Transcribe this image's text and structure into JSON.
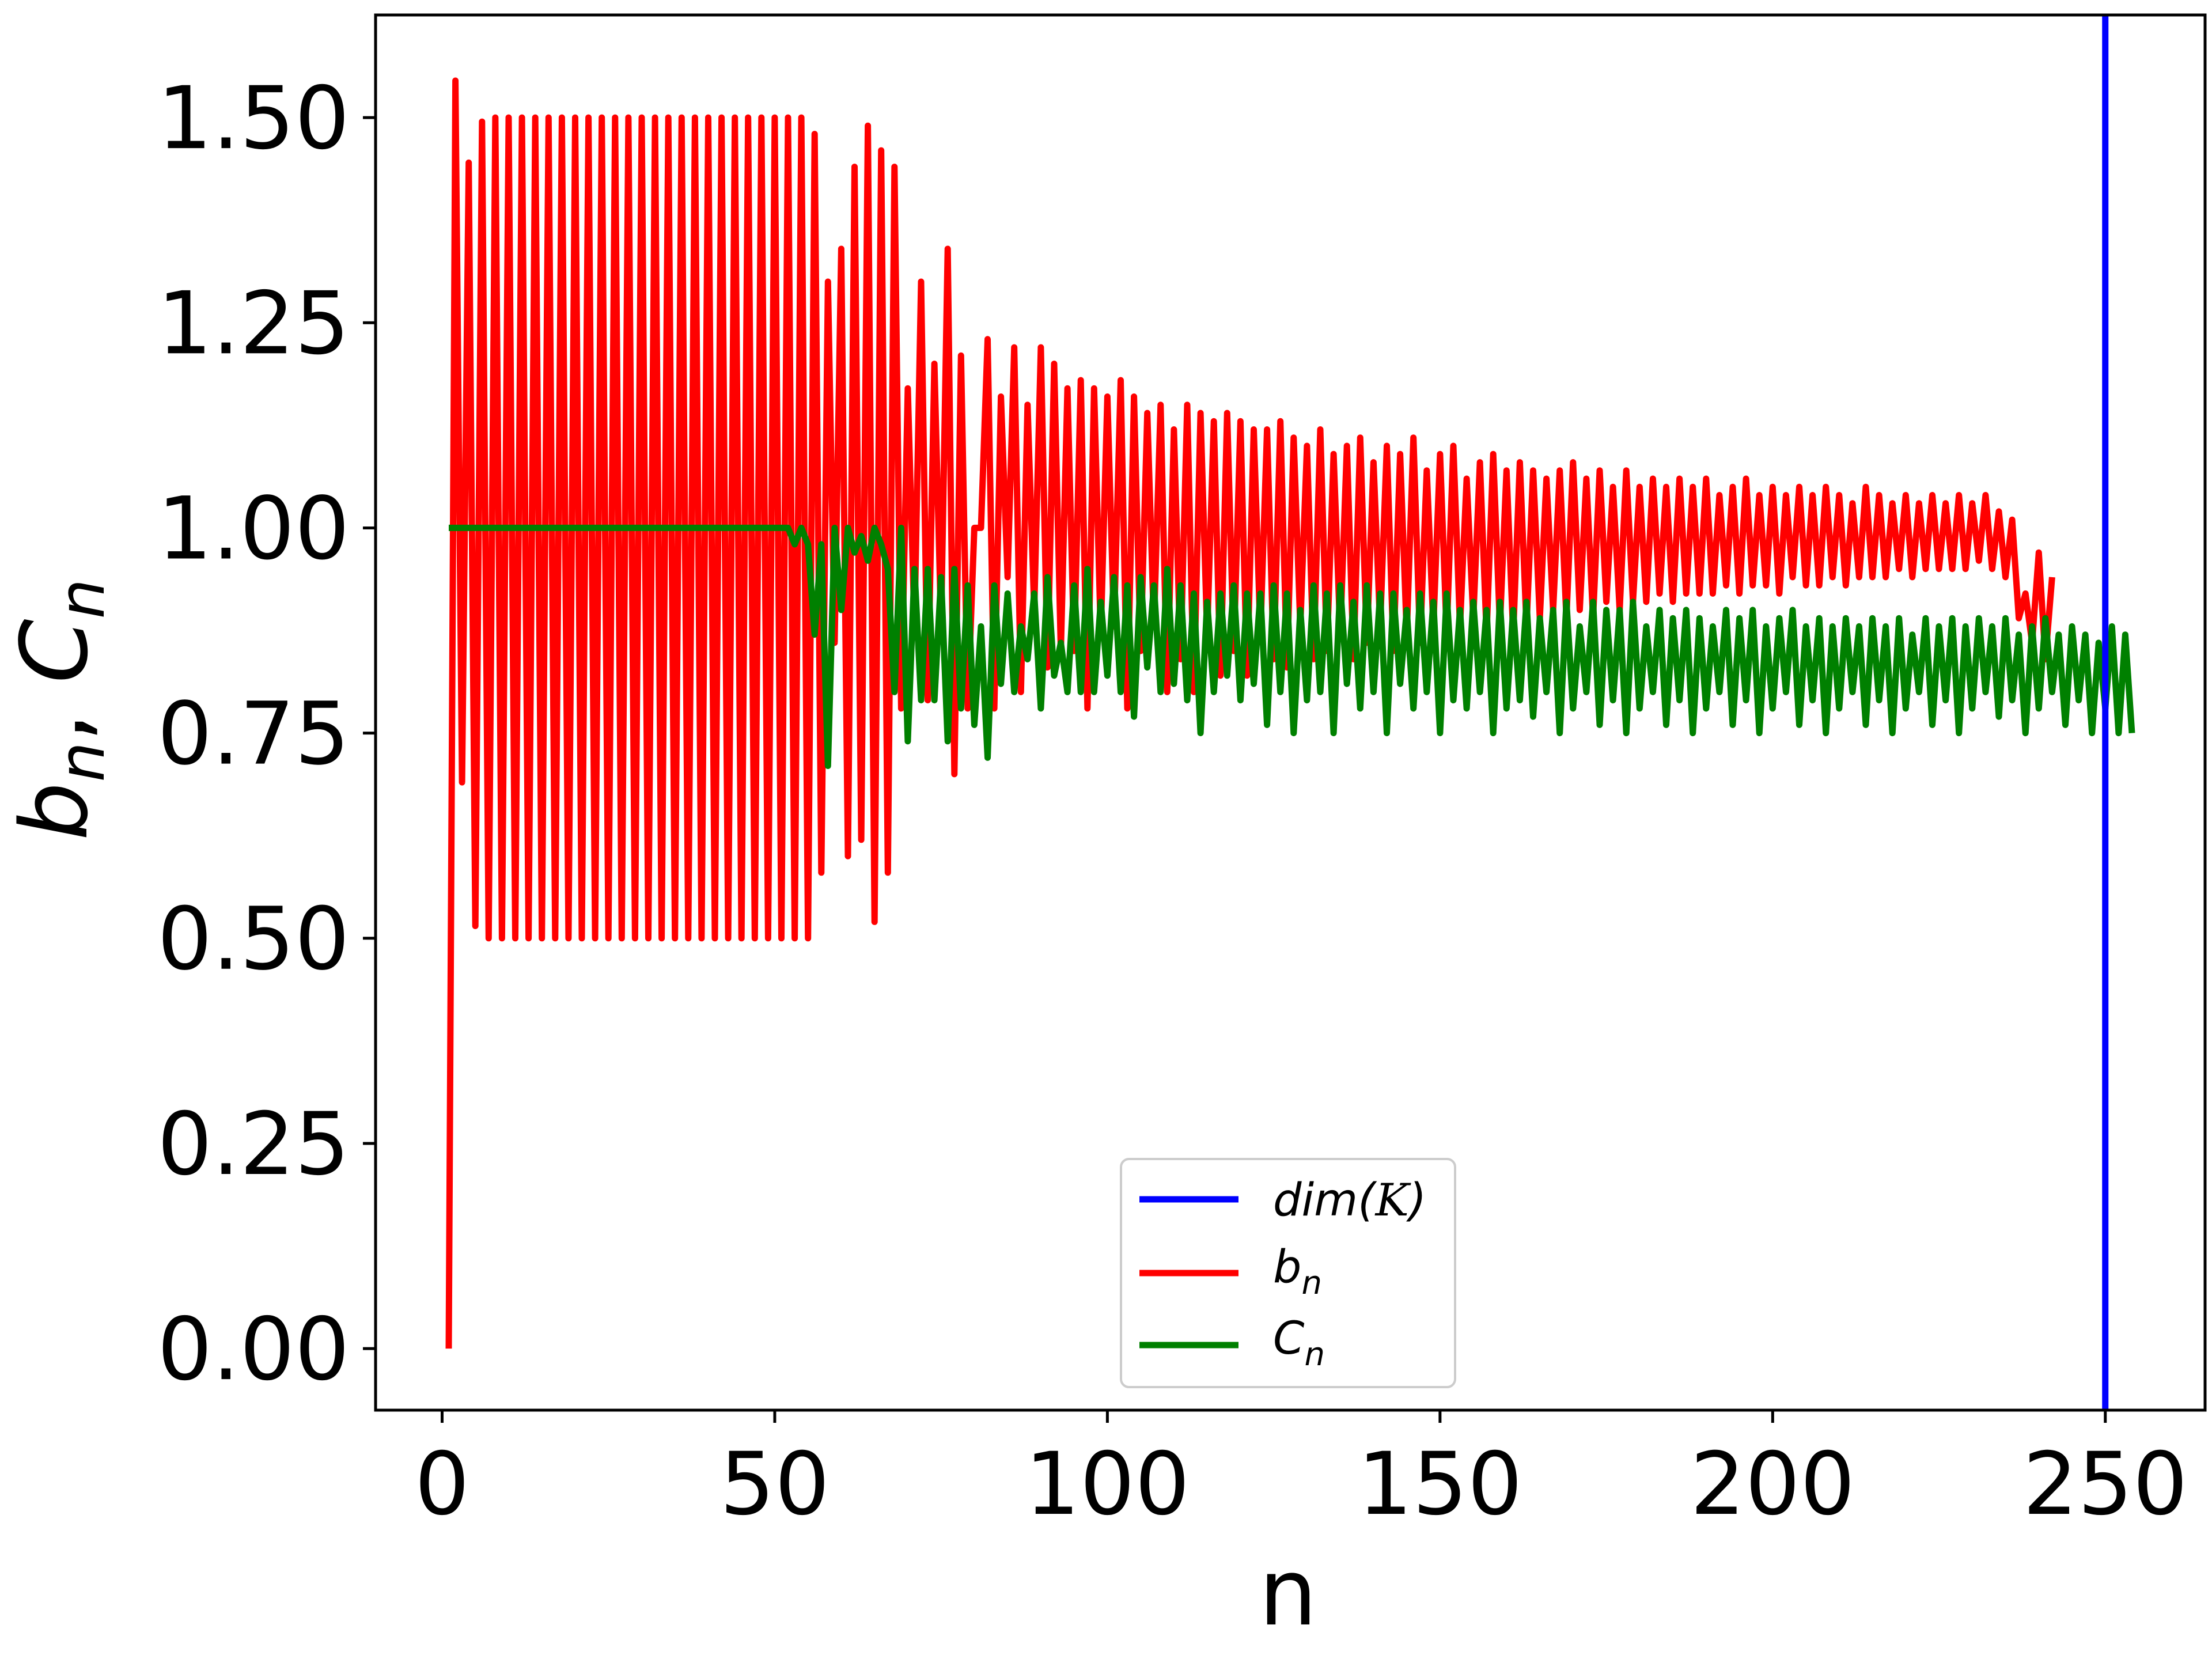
{
  "chart_data": {
    "type": "line",
    "xlabel": "n",
    "ylabel": {
      "main1": "b",
      "sub1": "n",
      "sep": ", ",
      "main2": "C",
      "sub2": "n"
    },
    "xlim": [
      -10,
      265
    ],
    "ylim": [
      -0.075,
      1.625
    ],
    "x_ticks": [
      0,
      50,
      100,
      150,
      200,
      250
    ],
    "x_tick_labels": [
      "0",
      "50",
      "100",
      "150",
      "200",
      "250"
    ],
    "y_ticks": [
      0.0,
      0.25,
      0.5,
      0.75,
      1.0,
      1.25,
      1.5
    ],
    "y_tick_labels": [
      "0.00",
      "0.25",
      "0.50",
      "0.75",
      "1.00",
      "1.25",
      "1.50"
    ],
    "grid": false,
    "legend_position": "lower-center",
    "legend": [
      {
        "main": "dim(",
        "script": "K",
        "tail": ")",
        "sub": "",
        "color": "#0000ff"
      },
      {
        "main": "b",
        "script": "",
        "tail": "",
        "sub": "n",
        "color": "#ff0000"
      },
      {
        "main": "C",
        "script": "",
        "tail": "",
        "sub": "n",
        "color": "#008000"
      }
    ],
    "vline": {
      "name": "dim(K)",
      "x": 250,
      "color": "#0000ff"
    },
    "series": [
      {
        "name": "b_n",
        "color": "#ff0000",
        "x_start": 1,
        "values": [
          0.0,
          1.545,
          0.69,
          1.445,
          0.515,
          1.495,
          0.5,
          1.5,
          0.5,
          1.5,
          0.5,
          1.5,
          0.5,
          1.5,
          0.5,
          1.5,
          0.5,
          1.5,
          0.5,
          1.5,
          0.5,
          1.5,
          0.5,
          1.5,
          0.5,
          1.5,
          0.5,
          1.5,
          0.5,
          1.5,
          0.5,
          1.5,
          0.5,
          1.5,
          0.5,
          1.5,
          0.5,
          1.5,
          0.5,
          1.5,
          0.5,
          1.5,
          0.5,
          1.5,
          0.5,
          1.5,
          0.5,
          1.5,
          0.5,
          1.5,
          0.5,
          1.5,
          0.5,
          1.5,
          0.5,
          1.48,
          0.58,
          1.3,
          0.86,
          1.34,
          0.6,
          1.44,
          0.62,
          1.49,
          0.52,
          1.46,
          0.58,
          1.44,
          0.78,
          1.17,
          0.88,
          1.3,
          0.79,
          1.2,
          0.88,
          1.34,
          0.7,
          1.21,
          0.78,
          1.0,
          1.0,
          1.23,
          0.78,
          1.16,
          0.94,
          1.22,
          0.8,
          1.15,
          0.9,
          1.22,
          0.83,
          1.2,
          0.85,
          1.17,
          0.85,
          1.18,
          0.78,
          1.17,
          0.87,
          1.16,
          0.88,
          1.18,
          0.78,
          1.16,
          0.85,
          1.14,
          0.88,
          1.15,
          0.8,
          1.12,
          0.84,
          1.15,
          0.8,
          1.14,
          0.87,
          1.13,
          0.82,
          1.14,
          0.85,
          1.13,
          0.82,
          1.12,
          0.87,
          1.12,
          0.84,
          1.13,
          0.83,
          1.11,
          0.88,
          1.1,
          0.84,
          1.12,
          0.85,
          1.09,
          0.87,
          1.1,
          0.84,
          1.11,
          0.86,
          1.08,
          0.88,
          1.1,
          0.85,
          1.09,
          0.87,
          1.11,
          0.86,
          1.07,
          0.88,
          1.09,
          0.87,
          1.1,
          0.88,
          1.06,
          0.89,
          1.08,
          0.87,
          1.09,
          0.88,
          1.07,
          0.87,
          1.08,
          0.88,
          1.07,
          0.89,
          1.06,
          0.9,
          1.07,
          0.89,
          1.08,
          0.9,
          1.06,
          0.89,
          1.07,
          0.91,
          1.05,
          0.9,
          1.07,
          0.91,
          1.05,
          0.91,
          1.06,
          0.92,
          1.05,
          0.91,
          1.06,
          0.92,
          1.05,
          0.92,
          1.06,
          0.92,
          1.04,
          0.93,
          1.05,
          0.92,
          1.06,
          0.93,
          1.04,
          0.93,
          1.05,
          0.92,
          1.04,
          0.94,
          1.05,
          0.93,
          1.04,
          0.93,
          1.05,
          0.94,
          1.04,
          0.93,
          1.03,
          0.94,
          1.05,
          0.94,
          1.04,
          0.94,
          1.03,
          0.95,
          1.04,
          0.94,
          1.03,
          0.95,
          1.04,
          0.95,
          1.03,
          0.95,
          1.04,
          0.95,
          1.03,
          0.96,
          1.04,
          0.95,
          1.02,
          0.94,
          1.01,
          0.89,
          0.92,
          0.86,
          0.97,
          0.84,
          0.94
        ]
      },
      {
        "name": "C_n",
        "color": "#008000",
        "x_start": 1,
        "values": [
          1.0,
          1.0,
          1.0,
          1.0,
          1.0,
          1.0,
          1.0,
          1.0,
          1.0,
          1.0,
          1.0,
          1.0,
          1.0,
          1.0,
          1.0,
          1.0,
          1.0,
          1.0,
          1.0,
          1.0,
          1.0,
          1.0,
          1.0,
          1.0,
          1.0,
          1.0,
          1.0,
          1.0,
          1.0,
          1.0,
          1.0,
          1.0,
          1.0,
          1.0,
          1.0,
          1.0,
          1.0,
          1.0,
          1.0,
          1.0,
          1.0,
          1.0,
          1.0,
          1.0,
          1.0,
          1.0,
          1.0,
          1.0,
          1.0,
          1.0,
          1.0,
          1.0,
          0.98,
          1.0,
          0.98,
          0.87,
          0.98,
          0.71,
          1.0,
          0.9,
          1.0,
          0.97,
          0.99,
          0.96,
          1.0,
          0.98,
          0.95,
          0.8,
          1.0,
          0.74,
          0.95,
          0.79,
          0.95,
          0.79,
          0.94,
          0.74,
          0.95,
          0.78,
          0.93,
          0.76,
          0.88,
          0.72,
          0.93,
          0.81,
          0.92,
          0.8,
          0.88,
          0.84,
          0.92,
          0.78,
          0.94,
          0.82,
          0.86,
          0.8,
          0.93,
          0.8,
          0.95,
          0.8,
          0.91,
          0.82,
          0.94,
          0.8,
          0.93,
          0.77,
          0.94,
          0.83,
          0.93,
          0.8,
          0.95,
          0.81,
          0.93,
          0.79,
          0.92,
          0.75,
          0.91,
          0.8,
          0.92,
          0.82,
          0.93,
          0.79,
          0.92,
          0.81,
          0.92,
          0.76,
          0.93,
          0.8,
          0.92,
          0.75,
          0.9,
          0.79,
          0.93,
          0.8,
          0.92,
          0.75,
          0.93,
          0.81,
          0.91,
          0.78,
          0.93,
          0.8,
          0.92,
          0.75,
          0.92,
          0.81,
          0.9,
          0.78,
          0.92,
          0.8,
          0.91,
          0.75,
          0.92,
          0.79,
          0.9,
          0.78,
          0.91,
          0.8,
          0.9,
          0.75,
          0.91,
          0.78,
          0.9,
          0.79,
          0.91,
          0.77,
          0.89,
          0.8,
          0.9,
          0.75,
          0.91,
          0.78,
          0.88,
          0.8,
          0.91,
          0.76,
          0.9,
          0.79,
          0.9,
          0.75,
          0.91,
          0.78,
          0.88,
          0.8,
          0.9,
          0.76,
          0.89,
          0.79,
          0.9,
          0.75,
          0.89,
          0.78,
          0.88,
          0.8,
          0.9,
          0.76,
          0.89,
          0.79,
          0.9,
          0.75,
          0.88,
          0.78,
          0.89,
          0.8,
          0.9,
          0.76,
          0.88,
          0.79,
          0.89,
          0.75,
          0.88,
          0.78,
          0.89,
          0.8,
          0.88,
          0.76,
          0.89,
          0.79,
          0.88,
          0.75,
          0.89,
          0.78,
          0.87,
          0.8,
          0.89,
          0.76,
          0.88,
          0.79,
          0.89,
          0.75,
          0.88,
          0.78,
          0.89,
          0.8,
          0.88,
          0.77,
          0.89,
          0.79,
          0.87,
          0.75,
          0.88,
          0.78,
          0.89,
          0.8,
          0.87,
          0.76,
          0.88,
          0.79,
          0.87,
          0.75,
          0.86,
          0.78,
          0.88,
          0.75,
          0.87,
          0.75
        ]
      }
    ]
  }
}
